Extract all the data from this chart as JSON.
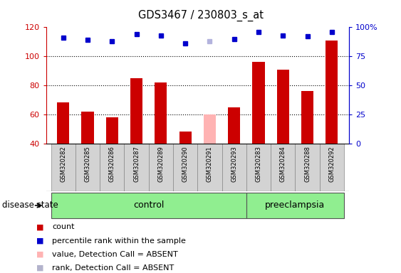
{
  "title": "GDS3467 / 230803_s_at",
  "samples": [
    "GSM320282",
    "GSM320285",
    "GSM320286",
    "GSM320287",
    "GSM320289",
    "GSM320290",
    "GSM320291",
    "GSM320293",
    "GSM320283",
    "GSM320284",
    "GSM320288",
    "GSM320292"
  ],
  "count_values": [
    68,
    62,
    58,
    85,
    82,
    48,
    60,
    65,
    96,
    91,
    76,
    111
  ],
  "count_colors": [
    "#cc0000",
    "#cc0000",
    "#cc0000",
    "#cc0000",
    "#cc0000",
    "#cc0000",
    "#ffb3b3",
    "#cc0000",
    "#cc0000",
    "#cc0000",
    "#cc0000",
    "#cc0000"
  ],
  "rank_values": [
    91,
    89,
    88,
    94,
    93,
    86,
    88,
    90,
    96,
    93,
    92,
    96
  ],
  "rank_colors": [
    "#0000cc",
    "#0000cc",
    "#0000cc",
    "#0000cc",
    "#0000cc",
    "#0000cc",
    "#b3b3dd",
    "#0000cc",
    "#0000cc",
    "#0000cc",
    "#0000cc",
    "#0000cc"
  ],
  "ylim_left": [
    40,
    120
  ],
  "ylim_right": [
    0,
    100
  ],
  "yticks_left": [
    40,
    60,
    80,
    100,
    120
  ],
  "yticks_right": [
    0,
    25,
    50,
    75,
    100
  ],
  "ytick_labels_right": [
    "0",
    "25",
    "50",
    "75",
    "100%"
  ],
  "n_control": 8,
  "control_label": "control",
  "preeclampsia_label": "preeclampsia",
  "disease_state_label": "disease state",
  "legend_items": [
    {
      "label": "count",
      "color": "#cc0000"
    },
    {
      "label": "percentile rank within the sample",
      "color": "#0000cc"
    },
    {
      "label": "value, Detection Call = ABSENT",
      "color": "#ffb3b3"
    },
    {
      "label": "rank, Detection Call = ABSENT",
      "color": "#b3b3cc"
    }
  ],
  "bar_width": 0.5,
  "background_color": "#ffffff",
  "right_axis_color": "#0000cc",
  "left_axis_color": "#cc0000",
  "label_bg_color": "#d3d3d3",
  "control_bg_color": "#90EE90",
  "preeclampsia_bg_color": "#90EE90"
}
